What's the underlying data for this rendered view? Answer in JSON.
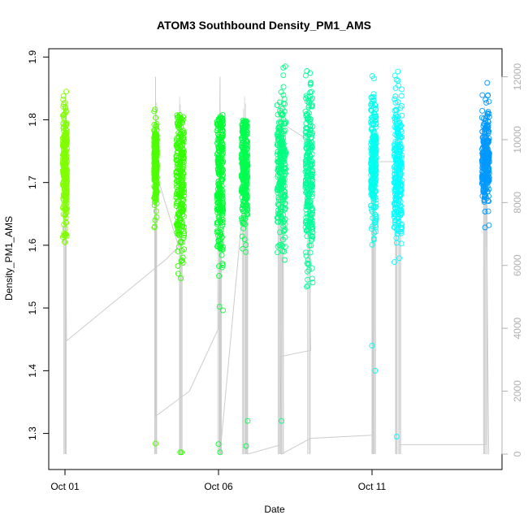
{
  "chart_data": {
    "type": "scatter",
    "title": "ATOM3 Southbound Density_PM1_AMS",
    "xlabel": "Date",
    "ylabel": "Density_PM1_AMS",
    "x_ticks": [
      "Oct 01",
      "Oct 06",
      "Oct 11"
    ],
    "y_ticks": [
      "1.3",
      "1.4",
      "1.5",
      "1.6",
      "1.7",
      "1.8",
      "1.9"
    ],
    "y_right_ticks": [
      "0",
      "2000",
      "4000",
      "6000",
      "8000",
      "10000",
      "12000"
    ],
    "ylim": [
      1.27,
      1.9
    ],
    "y_right_lim": [
      0,
      12500
    ],
    "grid": false,
    "secondary_series_color": "#cccccc",
    "clusters": [
      {
        "day": 1.0,
        "spread_days": 0.07,
        "center": 1.72,
        "sd": 0.05,
        "min": 1.47,
        "max": 1.86,
        "color": "#80ff00"
      },
      {
        "day": 3.95,
        "spread_days": 0.05,
        "center": 1.73,
        "sd": 0.03,
        "min": 1.56,
        "max": 1.82,
        "color": "#4dff00"
      },
      {
        "day": 4.75,
        "spread_days": 0.13,
        "center": 1.7,
        "sd": 0.06,
        "min": 1.45,
        "max": 1.81,
        "color": "#33ff00"
      },
      {
        "day": 6.05,
        "spread_days": 0.1,
        "center": 1.7,
        "sd": 0.07,
        "min": 1.36,
        "max": 1.81,
        "color": "#00ff33"
      },
      {
        "day": 6.85,
        "spread_days": 0.1,
        "center": 1.72,
        "sd": 0.05,
        "min": 1.47,
        "max": 1.8,
        "color": "#00ff4d"
      },
      {
        "day": 8.05,
        "spread_days": 0.14,
        "center": 1.72,
        "sd": 0.06,
        "min": 1.32,
        "max": 1.89,
        "color": "#00ff80"
      },
      {
        "day": 8.95,
        "spread_days": 0.12,
        "center": 1.72,
        "sd": 0.07,
        "min": 1.35,
        "max": 1.89,
        "color": "#00ff99"
      },
      {
        "day": 11.05,
        "spread_days": 0.09,
        "center": 1.73,
        "sd": 0.05,
        "min": 1.44,
        "max": 1.88,
        "color": "#00ffee"
      },
      {
        "day": 11.85,
        "spread_days": 0.13,
        "center": 1.72,
        "sd": 0.06,
        "min": 1.46,
        "max": 1.88,
        "color": "#00ffff"
      },
      {
        "day": 14.7,
        "spread_days": 0.12,
        "center": 1.74,
        "sd": 0.04,
        "min": 1.5,
        "max": 1.88,
        "color": "#0099ff"
      }
    ],
    "outliers": [
      {
        "day": 3.95,
        "y": 1.284,
        "color": "#4dff00"
      },
      {
        "day": 4.75,
        "y": 1.27,
        "color": "#33ff00"
      },
      {
        "day": 4.8,
        "y": 1.27,
        "color": "#33ff00"
      },
      {
        "day": 6.0,
        "y": 1.283,
        "color": "#00ff33"
      },
      {
        "day": 6.05,
        "y": 1.27,
        "color": "#00ff33"
      },
      {
        "day": 6.9,
        "y": 1.28,
        "color": "#00ff4d"
      },
      {
        "day": 6.95,
        "y": 1.32,
        "color": "#00ff4d"
      },
      {
        "day": 8.05,
        "y": 1.32,
        "color": "#00ff80"
      },
      {
        "day": 11.0,
        "y": 1.44,
        "color": "#00ffee"
      },
      {
        "day": 11.1,
        "y": 1.4,
        "color": "#00ffee"
      },
      {
        "day": 11.8,
        "y": 1.295,
        "color": "#00ffff"
      }
    ],
    "secondary_path": [
      [
        1.0,
        0
      ],
      [
        1.0,
        10000
      ],
      [
        1.05,
        3600
      ],
      [
        4.3,
        6200
      ],
      [
        4.7,
        6600
      ],
      [
        3.95,
        9000
      ],
      [
        3.95,
        12000
      ],
      [
        3.95,
        1200
      ],
      [
        5.05,
        2000
      ],
      [
        6.0,
        4000
      ],
      [
        6.05,
        12000
      ],
      [
        6.05,
        0
      ],
      [
        6.95,
        9500
      ],
      [
        6.95,
        0
      ],
      [
        8.05,
        300
      ],
      [
        8.1,
        10500
      ],
      [
        8.9,
        10000
      ],
      [
        9.0,
        3300
      ],
      [
        8.0,
        3100
      ],
      [
        8.05,
        0
      ],
      [
        9.0,
        500
      ],
      [
        11.0,
        600
      ],
      [
        11.05,
        9300
      ],
      [
        11.9,
        9300
      ],
      [
        11.9,
        300
      ],
      [
        14.7,
        300
      ],
      [
        14.7,
        10500
      ],
      [
        14.8,
        0
      ]
    ]
  }
}
